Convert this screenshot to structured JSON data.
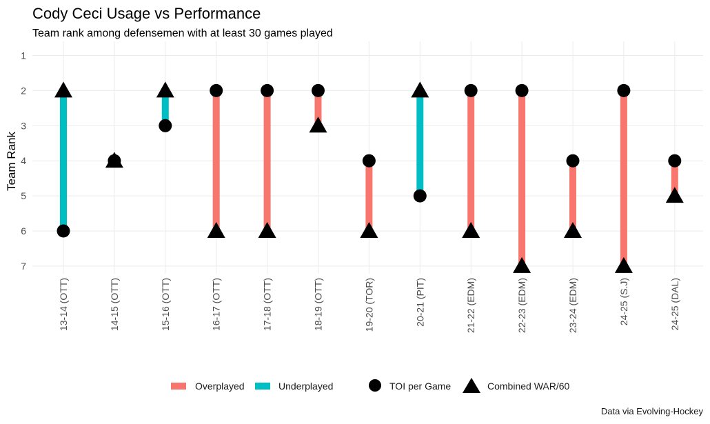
{
  "chart_data": {
    "type": "dumbbell",
    "title": "Cody Ceci Usage vs Performance",
    "subtitle": "Team rank among defensemen with at least 30 games played",
    "ylabel": "Team Rank",
    "caption": "Data via Evolving-Hockey",
    "y_axis": {
      "range": [
        1,
        7
      ],
      "reversed": true,
      "ticks": [
        1,
        2,
        3,
        4,
        5,
        6,
        7
      ],
      "grid": true
    },
    "categories": [
      "13-14 (OTT)",
      "14-15 (OTT)",
      "15-16 (OTT)",
      "16-17 (OTT)",
      "17-18 (OTT)",
      "18-19 (OTT)",
      "19-20 (TOR)",
      "20-21 (PIT)",
      "21-22 (EDM)",
      "22-23 (EDM)",
      "23-24 (EDM)",
      "24-25 (S.J)",
      "24-25 (DAL)"
    ],
    "series": [
      {
        "name": "TOI per Game",
        "marker": "circle",
        "values": [
          6,
          4,
          3,
          2,
          2,
          2,
          4,
          5,
          2,
          2,
          4,
          2,
          4
        ]
      },
      {
        "name": "Combined WAR/60",
        "marker": "triangle",
        "values": [
          2,
          4,
          2,
          6,
          6,
          3,
          6,
          2,
          6,
          7,
          6,
          7,
          5
        ]
      }
    ],
    "segment_legend": [
      {
        "name": "Overplayed",
        "color": "#F8766D"
      },
      {
        "name": "Underplayed",
        "color": "#00BFC4"
      }
    ],
    "legend_position": "bottom"
  }
}
